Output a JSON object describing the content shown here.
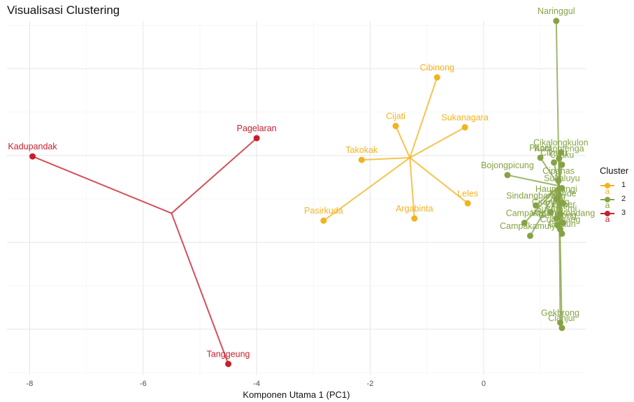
{
  "chart_data": {
    "type": "scatter",
    "title": "Visualisasi Clustering",
    "xlabel": "Komponen Utama 1 (PC1)",
    "ylabel": "",
    "xlim": [
      -8.4,
      1.8
    ],
    "ylim": [
      -4.05,
      4.1
    ],
    "xticks": [
      -8,
      -6,
      -4,
      -2,
      0
    ],
    "tick_labels": [
      "-8",
      "-6",
      "-4",
      "-2",
      "0"
    ],
    "grid": true,
    "legend": {
      "title": "Cluster",
      "position": "right",
      "entries": [
        "1",
        "2",
        "3"
      ],
      "key_glyph": "a"
    },
    "series": [
      {
        "name": "1",
        "color": "#F2B31D",
        "centroid": [
          -1.3,
          0.95
        ],
        "points": [
          {
            "label": "Cibinong",
            "x": -0.82,
            "y": 2.8
          },
          {
            "label": "Sukanagara",
            "x": -0.33,
            "y": 1.65
          },
          {
            "label": "Cijati",
            "x": -1.55,
            "y": 1.68
          },
          {
            "label": "Takokak",
            "x": -2.15,
            "y": 0.9
          },
          {
            "label": "Leles",
            "x": -0.28,
            "y": -0.1
          },
          {
            "label": "Argabinta",
            "x": -1.22,
            "y": -0.45
          },
          {
            "label": "Pasirkuda",
            "x": -2.82,
            "y": -0.5
          }
        ]
      },
      {
        "name": "2",
        "color": "#85A345",
        "centroid": [
          1.33,
          0.3
        ],
        "points": [
          {
            "label": "Naringgul",
            "x": 1.28,
            "y": 4.1
          },
          {
            "label": "Cikalongkulon",
            "x": 1.36,
            "y": 1.07
          },
          {
            "label": "Karangtenga",
            "x": 1.33,
            "y": 0.93
          },
          {
            "label": "Cikadu",
            "x": 1.24,
            "y": 0.84
          },
          {
            "label": "Cilaku",
            "x": 1.38,
            "y": 0.79
          },
          {
            "label": "Pacet",
            "x": 1.0,
            "y": 0.95
          },
          {
            "label": "Bojongpicung",
            "x": 0.42,
            "y": 0.55
          },
          {
            "label": "Cipanas",
            "x": 1.32,
            "y": 0.42
          },
          {
            "label": "Sukaluyu",
            "x": 1.38,
            "y": 0.25
          },
          {
            "label": "Haurwangi",
            "x": 1.28,
            "y": 0.0
          },
          {
            "label": "Sindangbarang",
            "x": 0.92,
            "y": -0.15
          },
          {
            "label": "Mande",
            "x": 1.4,
            "y": -0.1
          },
          {
            "label": "Ciranjang",
            "x": 1.18,
            "y": -0.3
          },
          {
            "label": "Cibeber",
            "x": 1.35,
            "y": -0.35
          },
          {
            "label": "Sukaresmi",
            "x": 1.28,
            "y": -0.45
          },
          {
            "label": "Campaka",
            "x": 0.72,
            "y": -0.55
          },
          {
            "label": "Warungkondang",
            "x": 1.4,
            "y": -0.55
          },
          {
            "label": "Gekbrong",
            "x": 1.3,
            "y": -0.6
          },
          {
            "label": "Cugenang",
            "x": 1.35,
            "y": -0.7
          },
          {
            "label": "Campakamulya",
            "x": 0.82,
            "y": -0.85
          },
          {
            "label": "Cidaun",
            "x": 1.38,
            "y": -0.8
          },
          {
            "label": "Gekbrong",
            "x": 1.35,
            "y": -2.85
          },
          {
            "label": "Cianjur",
            "x": 1.38,
            "y": -2.97
          }
        ]
      },
      {
        "name": "3",
        "color": "#C81E2C",
        "centroid": [
          -5.5,
          -0.33
        ],
        "points": [
          {
            "label": "Pagelaran",
            "x": -4.0,
            "y": 1.4
          },
          {
            "label": "Kadupandak",
            "x": -7.95,
            "y": 0.98
          },
          {
            "label": "Tanggeung",
            "x": -4.5,
            "y": -3.8
          }
        ]
      }
    ]
  }
}
